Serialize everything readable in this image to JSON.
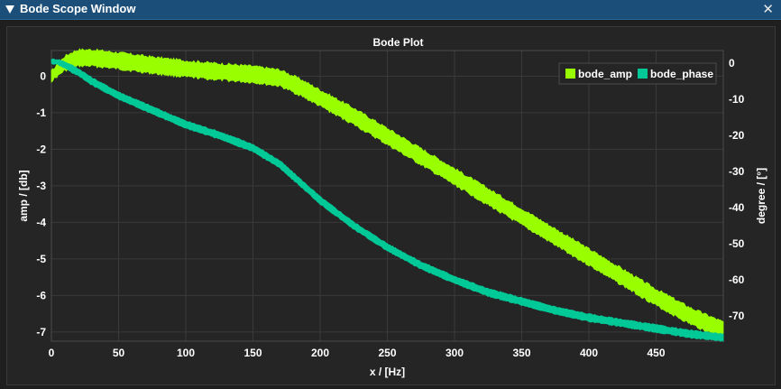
{
  "window": {
    "title": "Bode Scope Window",
    "close_glyph": "✕"
  },
  "colors": {
    "titlebar": "#1b4f7a",
    "plot_bg": "#252526",
    "grid": "#3a3a3a",
    "amp": "#99ff00",
    "phase": "#00c896"
  },
  "chart_data": {
    "type": "line",
    "title": "Bode Plot",
    "xlabel": "x / [Hz]",
    "ylabel_left": "amp / [db]",
    "ylabel_right": "degree / [°]",
    "xlim": [
      0,
      500
    ],
    "ylim_left": [
      -7.25,
      0.7
    ],
    "ylim_right": [
      -77,
      3.5
    ],
    "x_ticks": [
      0,
      50,
      100,
      150,
      200,
      250,
      300,
      350,
      400,
      450
    ],
    "y_ticks_left": [
      0,
      -1,
      -2,
      -3,
      -4,
      -5,
      -6,
      -7
    ],
    "y_ticks_right": [
      0,
      -10,
      -20,
      -30,
      -40,
      -50,
      -60,
      -70
    ],
    "grid": true,
    "legend_position": "top-right",
    "series": [
      {
        "name": "bode_amp",
        "axis": "left",
        "color": "#99ff00",
        "x": [
          0,
          10,
          20,
          30,
          50,
          75,
          100,
          125,
          150,
          170,
          185,
          200,
          225,
          250,
          275,
          300,
          325,
          350,
          375,
          400,
          425,
          450,
          475,
          500
        ],
        "y": [
          0.0,
          0.35,
          0.5,
          0.5,
          0.42,
          0.3,
          0.2,
          0.12,
          0.05,
          -0.05,
          -0.3,
          -0.6,
          -1.1,
          -1.65,
          -2.2,
          -2.75,
          -3.3,
          -3.85,
          -4.4,
          -4.95,
          -5.5,
          -6.05,
          -6.55,
          -6.95
        ],
        "band": 0.22
      },
      {
        "name": "bode_phase",
        "axis": "right",
        "color": "#00c896",
        "x": [
          0,
          5,
          10,
          20,
          30,
          50,
          75,
          100,
          125,
          150,
          170,
          185,
          200,
          225,
          250,
          275,
          300,
          325,
          350,
          375,
          400,
          425,
          450,
          475,
          500
        ],
        "y": [
          0.5,
          0.3,
          -0.5,
          -2.5,
          -5,
          -9,
          -13,
          -17,
          -20,
          -23.5,
          -28,
          -33,
          -38,
          -45,
          -51,
          -56,
          -60,
          -63.5,
          -66,
          -68.5,
          -70.5,
          -72,
          -73.5,
          -75,
          -76
        ],
        "band": 1.0
      }
    ]
  }
}
